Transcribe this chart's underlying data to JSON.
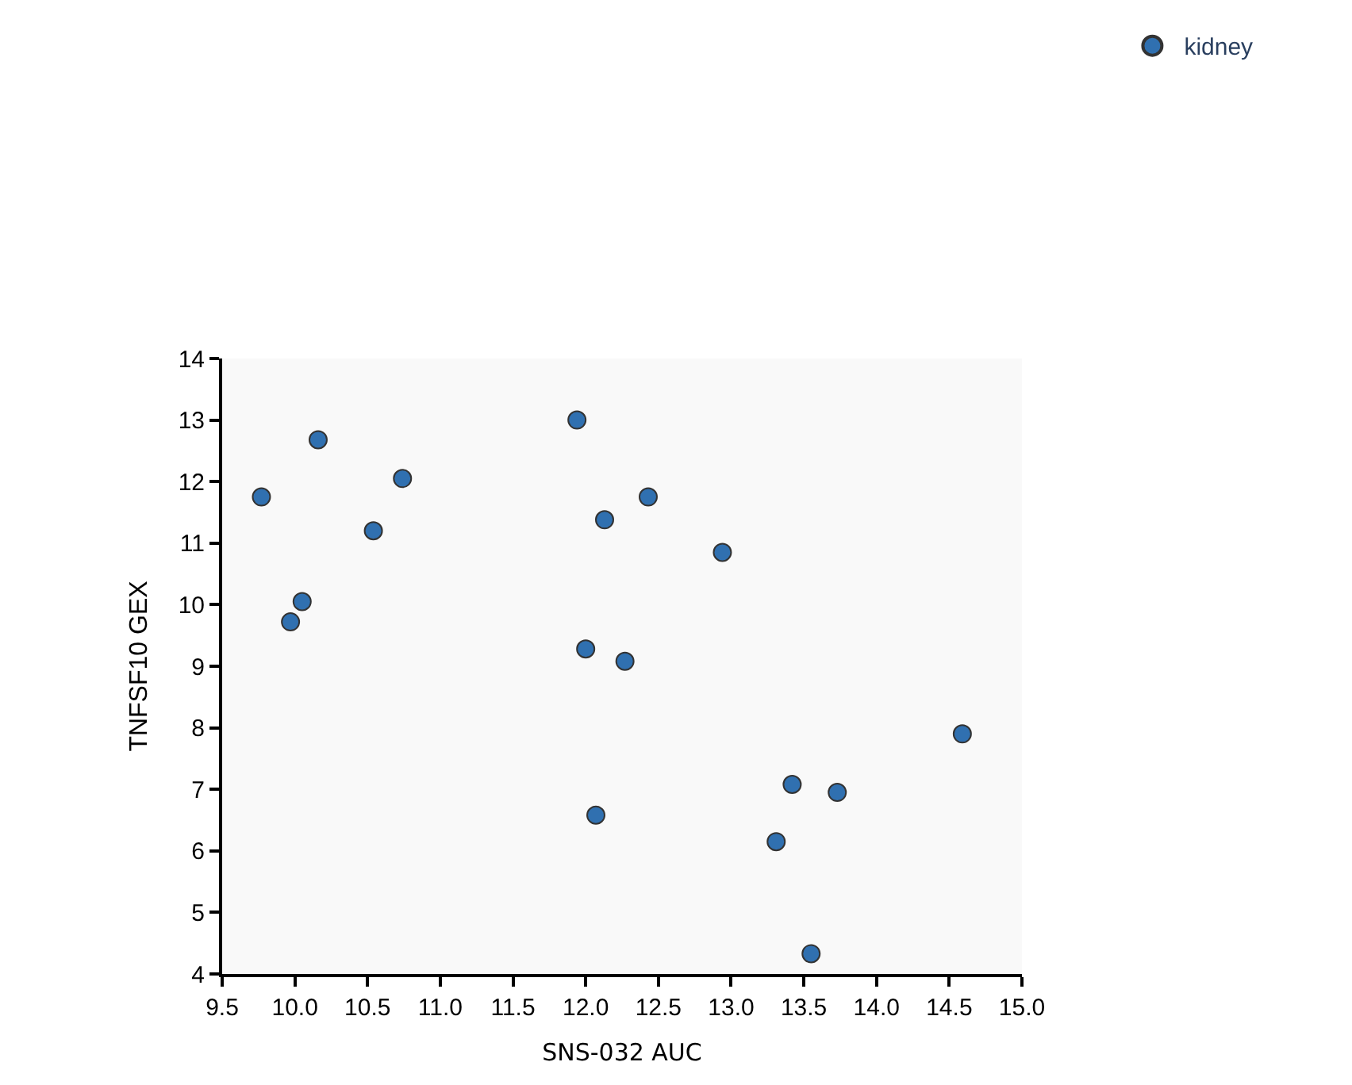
{
  "chart_data": {
    "type": "scatter",
    "xlabel": "SNS-032 AUC",
    "ylabel": "TNFSF10 GEX",
    "xlim": [
      9.5,
      15.0
    ],
    "xticks": [
      {
        "value": 9.5,
        "label": "9.5"
      },
      {
        "value": 10,
        "label": "10.0"
      },
      {
        "value": 10.5,
        "label": "10.5"
      },
      {
        "value": 11,
        "label": "11.0"
      },
      {
        "value": 11.5,
        "label": "11.5"
      },
      {
        "value": 12,
        "label": "12.0"
      },
      {
        "value": 12.5,
        "label": "12.5"
      },
      {
        "value": 13,
        "label": "13.0"
      },
      {
        "value": 13.5,
        "label": "13.5"
      },
      {
        "value": 14,
        "label": "14.0"
      },
      {
        "value": 14.5,
        "label": "14.5"
      },
      {
        "value": 15,
        "label": "15.0"
      }
    ],
    "ylim": [
      4,
      14
    ],
    "yticks": [
      4,
      5,
      6,
      7,
      8,
      9,
      10,
      11,
      12,
      13,
      14
    ],
    "grid": false,
    "legend": "top right",
    "marker": "circle",
    "series": [
      {
        "name": "kidney",
        "color": "#3070b0",
        "x": [
          9.77,
          9.97,
          10.05,
          10.16,
          10.54,
          10.74,
          11.94,
          12.0,
          12.13,
          12.07,
          12.27,
          12.43,
          12.94,
          13.31,
          13.42,
          13.73,
          13.55,
          14.59
        ],
        "values": [
          11.75,
          9.72,
          10.05,
          12.68,
          11.2,
          12.05,
          13.0,
          9.28,
          11.38,
          6.58,
          9.08,
          11.75,
          10.85,
          6.15,
          7.08,
          6.95,
          4.33,
          7.9
        ]
      }
    ]
  }
}
